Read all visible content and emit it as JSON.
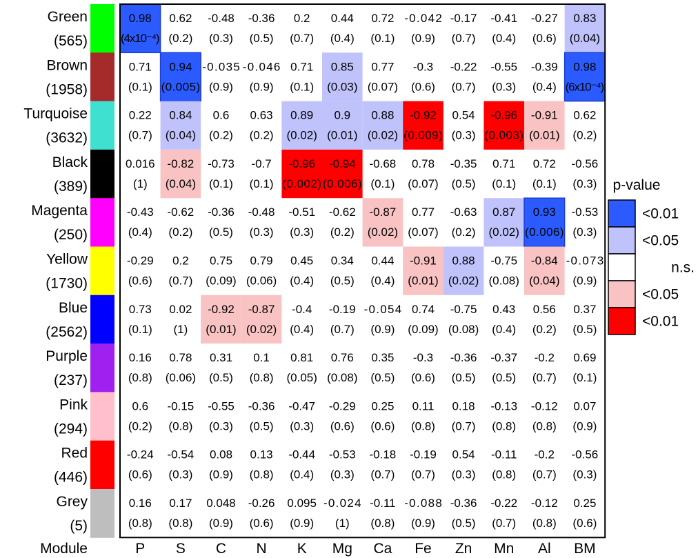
{
  "chart_data": {
    "type": "heatmap",
    "row_header": "Module",
    "rows": [
      {
        "name": "Green",
        "count": "(565)",
        "color": "#00ff00"
      },
      {
        "name": "Brown",
        "count": "(1958)",
        "color": "#a52a2a"
      },
      {
        "name": "Turquoise",
        "count": "(3632)",
        "color": "#40e0d0"
      },
      {
        "name": "Black",
        "count": "(389)",
        "color": "#000000"
      },
      {
        "name": "Magenta",
        "count": "(250)",
        "color": "#ff00ff"
      },
      {
        "name": "Yellow",
        "count": "(1730)",
        "color": "#ffff00"
      },
      {
        "name": "Blue",
        "count": "(2562)",
        "color": "#0000ff"
      },
      {
        "name": "Purple",
        "count": "(237)",
        "color": "#a020f0"
      },
      {
        "name": "Pink",
        "count": "(294)",
        "color": "#ffc0cb"
      },
      {
        "name": "Red",
        "count": "(446)",
        "color": "#ff0000"
      },
      {
        "name": "Grey",
        "count": "(5)",
        "color": "#bebebe"
      }
    ],
    "columns": [
      "P",
      "S",
      "C",
      "N",
      "K",
      "Mg",
      "Ca",
      "Fe",
      "Zn",
      "Mn",
      "Al",
      "BM"
    ],
    "correlations": [
      [
        "0.98",
        "0.62",
        "-0.48",
        "-0.36",
        "0.2",
        "0.44",
        "0.72",
        "-0.042",
        "-0.17",
        "-0.41",
        "-0.27",
        "0.83"
      ],
      [
        "0.71",
        "0.94",
        "-0.035",
        "-0.046",
        "0.71",
        "0.85",
        "0.77",
        "-0.3",
        "-0.22",
        "-0.55",
        "-0.39",
        "0.98"
      ],
      [
        "0.22",
        "0.84",
        "0.6",
        "0.63",
        "0.89",
        "0.9",
        "0.88",
        "-0.92",
        "0.54",
        "-0.96",
        "-0.91",
        "0.62"
      ],
      [
        "0.016",
        "-0.82",
        "-0.73",
        "-0.7",
        "-0.96",
        "-0.94",
        "-0.68",
        "0.78",
        "-0.35",
        "0.71",
        "0.72",
        "-0.56"
      ],
      [
        "-0.43",
        "-0.62",
        "-0.36",
        "-0.48",
        "-0.51",
        "-0.62",
        "-0.87",
        "0.77",
        "-0.63",
        "0.87",
        "0.93",
        "-0.53"
      ],
      [
        "-0.29",
        "0.2",
        "0.75",
        "0.79",
        "0.45",
        "0.34",
        "0.44",
        "-0.91",
        "0.88",
        "-0.75",
        "-0.84",
        "-0.073"
      ],
      [
        "0.73",
        "0.02",
        "-0.92",
        "-0.87",
        "-0.4",
        "-0.19",
        "-0.054",
        "0.74",
        "-0.75",
        "0.43",
        "0.56",
        "0.37"
      ],
      [
        "0.16",
        "0.78",
        "0.31",
        "0.1",
        "0.81",
        "0.76",
        "0.35",
        "-0.3",
        "-0.36",
        "-0.37",
        "-0.2",
        "0.69"
      ],
      [
        "0.6",
        "-0.15",
        "-0.55",
        "-0.36",
        "-0.47",
        "-0.29",
        "0.25",
        "0.11",
        "0.18",
        "-0.13",
        "-0.12",
        "0.07"
      ],
      [
        "-0.24",
        "-0.54",
        "0.08",
        "0.13",
        "-0.44",
        "-0.53",
        "-0.18",
        "-0.19",
        "0.54",
        "-0.11",
        "-0.2",
        "-0.56"
      ],
      [
        "0.16",
        "0.17",
        "0.048",
        "-0.26",
        "0.095",
        "-0.024",
        "-0.11",
        "-0.088",
        "-0.36",
        "-0.22",
        "-0.12",
        "0.25"
      ]
    ],
    "pvalues": [
      [
        "(4x10⁻⁴)",
        "(0.2)",
        "(0.3)",
        "(0.5)",
        "(0.7)",
        "(0.4)",
        "(0.1)",
        "(0.9)",
        "(0.7)",
        "(0.4)",
        "(0.6)",
        "(0.04)"
      ],
      [
        "(0.1)",
        "(0.005)",
        "(0.9)",
        "(0.9)",
        "(0.1)",
        "(0.03)",
        "(0.07)",
        "(0.6)",
        "(0.7)",
        "(0.3)",
        "(0.4)",
        "(6x10⁻⁴)"
      ],
      [
        "(0.7)",
        "(0.04)",
        "(0.2)",
        "(0.2)",
        "(0.02)",
        "(0.01)",
        "(0.02)",
        "(0.009)",
        "(0.3)",
        "(0.003)",
        "(0.01)",
        "(0.2)"
      ],
      [
        "(1)",
        "(0.04)",
        "(0.1)",
        "(0.1)",
        "(0.002)",
        "(0.006)",
        "(0.1)",
        "(0.07)",
        "(0.5)",
        "(0.1)",
        "(0.1)",
        "(0.3)"
      ],
      [
        "(0.4)",
        "(0.2)",
        "(0.5)",
        "(0.3)",
        "(0.3)",
        "(0.2)",
        "(0.02)",
        "(0.07)",
        "(0.2)",
        "(0.02)",
        "(0.006)",
        "(0.3)"
      ],
      [
        "(0.6)",
        "(0.7)",
        "(0.09)",
        "(0.06)",
        "(0.4)",
        "(0.5)",
        "(0.4)",
        "(0.01)",
        "(0.02)",
        "(0.08)",
        "(0.04)",
        "(0.9)"
      ],
      [
        "(0.1)",
        "(1)",
        "(0.01)",
        "(0.02)",
        "(0.4)",
        "(0.7)",
        "(0.9)",
        "(0.09)",
        "(0.08)",
        "(0.4)",
        "(0.2)",
        "(0.5)"
      ],
      [
        "(0.8)",
        "(0.06)",
        "(0.5)",
        "(0.8)",
        "(0.05)",
        "(0.08)",
        "(0.5)",
        "(0.6)",
        "(0.5)",
        "(0.5)",
        "(0.7)",
        "(0.1)"
      ],
      [
        "(0.2)",
        "(0.8)",
        "(0.3)",
        "(0.5)",
        "(0.3)",
        "(0.6)",
        "(0.6)",
        "(0.8)",
        "(0.7)",
        "(0.8)",
        "(0.8)",
        "(0.9)"
      ],
      [
        "(0.6)",
        "(0.3)",
        "(0.9)",
        "(0.8)",
        "(0.4)",
        "(0.3)",
        "(0.7)",
        "(0.7)",
        "(0.3)",
        "(0.8)",
        "(0.7)",
        "(0.3)"
      ],
      [
        "(0.8)",
        "(0.8)",
        "(0.9)",
        "(0.6)",
        "(0.9)",
        "(1)",
        "(0.8)",
        "(0.9)",
        "(0.5)",
        "(0.7)",
        "(0.8)",
        "(0.6)"
      ]
    ],
    "significance": [
      [
        2,
        0,
        0,
        0,
        0,
        0,
        0,
        0,
        0,
        0,
        0,
        1
      ],
      [
        0,
        2,
        0,
        0,
        0,
        1,
        0,
        0,
        0,
        0,
        0,
        2
      ],
      [
        0,
        1,
        0,
        0,
        1,
        1,
        1,
        -2,
        0,
        -2,
        -1,
        0
      ],
      [
        0,
        -1,
        0,
        0,
        -2,
        -2,
        0,
        0,
        0,
        0,
        0,
        0
      ],
      [
        0,
        0,
        0,
        0,
        0,
        0,
        -1,
        0,
        0,
        1,
        2,
        0
      ],
      [
        0,
        0,
        0,
        0,
        0,
        0,
        0,
        -1,
        1,
        0,
        -1,
        0
      ],
      [
        0,
        0,
        -1,
        -1,
        0,
        0,
        0,
        0,
        0,
        0,
        0,
        0
      ],
      [
        0,
        0,
        0,
        0,
        0,
        0,
        0,
        0,
        0,
        0,
        0,
        0
      ],
      [
        0,
        0,
        0,
        0,
        0,
        0,
        0,
        0,
        0,
        0,
        0,
        0
      ],
      [
        0,
        0,
        0,
        0,
        0,
        0,
        0,
        0,
        0,
        0,
        0,
        0
      ],
      [
        0,
        0,
        0,
        0,
        0,
        0,
        0,
        0,
        0,
        0,
        0,
        0
      ]
    ],
    "legend": {
      "title": "p-value",
      "placement": "right",
      "items": [
        {
          "label": "<0.01",
          "color": "#2b5bff",
          "level": 2
        },
        {
          "label": "<0.05",
          "color": "#c0c3fb",
          "level": 1
        },
        {
          "label": "n.s.",
          "color": "#ffffff",
          "level": 0
        },
        {
          "label": "<0.05",
          "color": "#f9c3c3",
          "level": -1
        },
        {
          "label": "<0.01",
          "color": "#ff0000",
          "level": -2
        }
      ]
    }
  }
}
